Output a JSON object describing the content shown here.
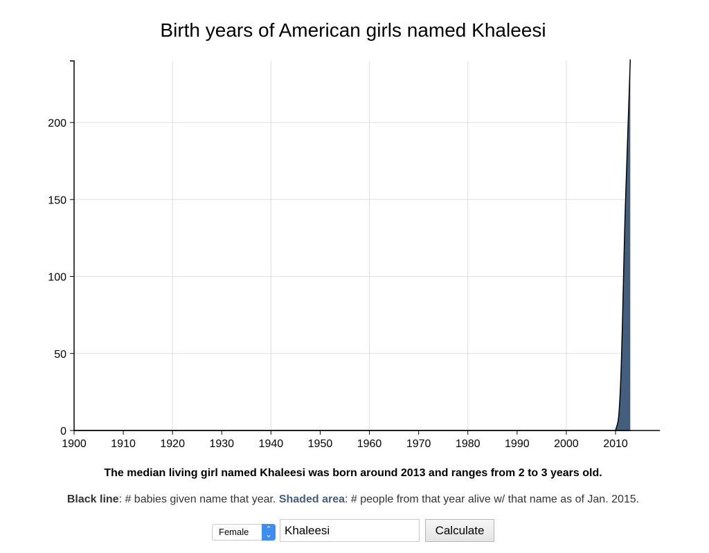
{
  "title": "Birth years of American girls named Khaleesi",
  "summary": "The median living girl named Khaleesi was born around 2013 and ranges from 2 to 3 years old.",
  "legend": {
    "black_line_label": "Black line",
    "black_line_text": ": # babies given name that year. ",
    "shaded_label": "Shaded area",
    "shaded_text": ": # people from that year alive w/ that name as of Jan. 2015."
  },
  "controls": {
    "sex_select_value": "Female",
    "name_input_value": "Khaleesi",
    "calculate_label": "Calculate"
  },
  "colors": {
    "shaded": "#445f7e",
    "line": "#000000",
    "grid": "#dddddd"
  },
  "chart_data": {
    "type": "area",
    "title": "Birth years of American girls named Khaleesi",
    "xlabel": "",
    "ylabel": "",
    "xlim": [
      1900,
      2013
    ],
    "ylim": [
      0,
      240
    ],
    "x_ticks": [
      1900,
      1910,
      1920,
      1930,
      1940,
      1950,
      1960,
      1970,
      1980,
      1990,
      2000,
      2010
    ],
    "y_ticks": [
      0,
      50,
      100,
      150,
      200
    ],
    "grid": {
      "x": [
        1920,
        1940,
        1960,
        1980,
        2000
      ],
      "y": [
        50,
        100,
        150,
        200
      ]
    },
    "series": [
      {
        "name": "# babies given name that year",
        "style": "black line",
        "x": [
          1900,
          2009,
          2010,
          2011,
          2012,
          2013
        ],
        "values": [
          0,
          0,
          0,
          28,
          146,
          241
        ]
      },
      {
        "name": "# people from that year alive w/ that name as of Jan. 2015",
        "style": "shaded area",
        "x": [
          1900,
          2009,
          2010,
          2011,
          2012,
          2013
        ],
        "values": [
          0,
          0,
          0,
          28,
          146,
          241
        ]
      }
    ]
  }
}
